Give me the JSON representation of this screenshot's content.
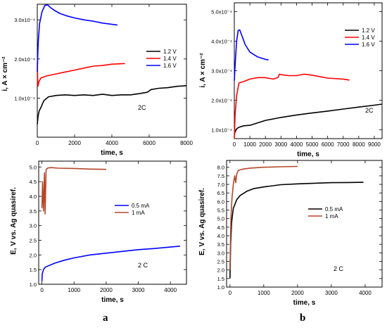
{
  "figure": {
    "captions": [
      "a",
      "b"
    ]
  },
  "chart_data": [
    {
      "id": "top-left",
      "type": "line",
      "title": "",
      "xlabel": "time, s",
      "ylabel": "i, A × cm⁻²",
      "xlim": [
        0,
        8000
      ],
      "ylim": [
        0.0,
        0.00034
      ],
      "xticks": [
        0,
        2000,
        4000,
        6000,
        8000
      ],
      "xtick_labels": [
        "0",
        "2000",
        "4000",
        "6000",
        "8000"
      ],
      "yticks": [
        0.0001,
        0.0002,
        0.0003
      ],
      "ytick_labels": [
        "1.0x10⁻⁴",
        "2.0x10⁻⁴",
        "3.0x10⁻⁴"
      ],
      "annotation": "2C",
      "legend_position": "right",
      "series": [
        {
          "name": "1.2 V",
          "color": "#000000",
          "x": [
            0,
            40,
            100,
            200,
            350,
            600,
            1000,
            1500,
            2000,
            2500,
            3000,
            3500,
            4000,
            4500,
            5000,
            5500,
            5900,
            6100,
            6500,
            7000,
            7500,
            8000
          ],
          "y": [
            3.33e-05,
            5.33e-05,
            6.67e-05,
            7.67e-05,
            9.33e-05,
            0.0001033,
            0.0001067,
            0.0001083,
            0.0001067,
            0.0001083,
            0.0001067,
            0.00011,
            0.0001067,
            0.0001083,
            0.0001083,
            0.0001117,
            0.000115,
            0.0001217,
            0.000125,
            0.0001267,
            0.00013,
            0.0001317
          ]
        },
        {
          "name": "1.4 V",
          "color": "#ff0000",
          "x": [
            0,
            30,
            100,
            200,
            500,
            1000,
            1500,
            2000,
            2500,
            3000,
            3500,
            4000,
            4700
          ],
          "y": [
            0.0001917,
            0.00013,
            0.0001433,
            0.0001517,
            0.0001567,
            0.0001617,
            0.0001667,
            0.0001717,
            0.0001767,
            0.0001817,
            0.0001833,
            0.0001867,
            0.0001883
          ]
        },
        {
          "name": "1.6 V",
          "color": "#0000ff",
          "x": [
            0,
            30,
            60,
            120,
            250,
            400,
            550,
            700,
            900,
            1200,
            1600,
            2000,
            2500,
            3000,
            3500,
            4300
          ],
          "y": [
            0.0001667,
            0.0002167,
            0.00025,
            0.00029,
            0.00032,
            0.0003367,
            0.0003383,
            0.0003317,
            0.000325,
            0.0003167,
            0.00031,
            0.000305,
            0.0003,
            0.0002967,
            0.0002917,
            0.0002867
          ]
        }
      ]
    },
    {
      "id": "top-right",
      "type": "line",
      "title": "",
      "xlabel": "time, s",
      "ylabel": "i, A × cm⁻²",
      "xlim": [
        0,
        9500
      ],
      "ylim": [
        7e-05,
        0.00053
      ],
      "xticks": [
        0,
        1000,
        2000,
        3000,
        4000,
        5000,
        6000,
        7000,
        8000,
        9000
      ],
      "xtick_labels": [
        "0",
        "1000",
        "2000",
        "3000",
        "4000",
        "5000",
        "6000",
        "7000",
        "8000",
        "9000"
      ],
      "yticks": [
        0.0001,
        0.0002,
        0.0003,
        0.0004,
        0.0005
      ],
      "ytick_labels": [
        "1.0x10⁻⁴",
        "2.0x10⁻⁴",
        "3.0x10⁻⁴",
        "4.0x10⁻⁴",
        "5.0x10⁻⁴"
      ],
      "annotation": "2C",
      "legend_position": "right",
      "series": [
        {
          "name": "1.2 V",
          "color": "#000000",
          "x": [
            0,
            50,
            150,
            300,
            600,
            1000,
            1500,
            2000,
            3000,
            4000,
            5000,
            6000,
            7000,
            8000,
            9000,
            9500
          ],
          "y": [
            8.33e-05,
            9.33e-05,
            0.0001033,
            0.0001083,
            0.0001133,
            0.000115,
            0.0001233,
            0.0001317,
            0.0001417,
            0.00015,
            0.0001567,
            0.0001633,
            0.00017,
            0.0001767,
            0.0001833,
            0.0001867
          ]
        },
        {
          "name": "1.4 V",
          "color": "#ff0000",
          "x": [
            0,
            50,
            150,
            300,
            600,
            1000,
            1500,
            2000,
            2500,
            2800,
            2900,
            3000,
            3500,
            4000,
            4500,
            5000,
            6000,
            7000,
            7400
          ],
          "y": [
            7e-05,
            0.00015,
            0.0002167,
            0.0002583,
            0.0002633,
            0.0002717,
            0.0002767,
            0.0002767,
            0.0002717,
            0.0002767,
            0.0002883,
            0.0002867,
            0.0002833,
            0.0002833,
            0.0002883,
            0.000285,
            0.000275,
            0.0002717,
            0.0002683
          ]
        },
        {
          "name": "1.6 V",
          "color": "#0000ff",
          "x": [
            0,
            50,
            100,
            150,
            250,
            350,
            500,
            700,
            1000,
            1500,
            2000,
            2200
          ],
          "y": [
            0.0002667,
            0.0003167,
            0.00036,
            0.0004,
            0.0004367,
            0.0004383,
            0.0004167,
            0.0003883,
            0.0003633,
            0.0003467,
            0.0003383,
            0.0003367
          ]
        }
      ]
    },
    {
      "id": "bottom-left",
      "type": "line",
      "title": "",
      "xlabel": "time, s",
      "ylabel": "E, V vs. Ag quasiref.",
      "xlim": [
        -100,
        4500
      ],
      "ylim": [
        1.0,
        5.2
      ],
      "xticks": [
        0,
        1000,
        2000,
        3000,
        4000
      ],
      "xtick_labels": [
        "0",
        "1000",
        "2000",
        "3000",
        "4000"
      ],
      "yticks": [
        1.0,
        1.5,
        2.0,
        2.5,
        3.0,
        3.5,
        4.0,
        4.5,
        5.0
      ],
      "ytick_labels": [
        "1.0",
        "1.5",
        "2.0",
        "2.5",
        "3.0",
        "3.5",
        "4.0",
        "4.5",
        "5.0"
      ],
      "annotation": "2 C",
      "legend_position": "right",
      "series": [
        {
          "name": "0.5 mA",
          "color": "#0000ff",
          "x": [
            0,
            10,
            50,
            100,
            200,
            400,
            700,
            1000,
            1500,
            2000,
            2500,
            3000,
            3500,
            4000,
            4300
          ],
          "y": [
            1.1,
            1.35,
            1.5,
            1.58,
            1.63,
            1.72,
            1.82,
            1.9,
            2.0,
            2.06,
            2.12,
            2.18,
            2.22,
            2.27,
            2.3
          ]
        },
        {
          "name": "1 mA",
          "color": "#b5462b",
          "x": [
            0,
            20,
            50,
            80,
            100,
            130,
            160,
            200,
            300,
            500,
            1000,
            1500,
            2000
          ],
          "y": [
            3.6,
            4.5,
            3.5,
            4.8,
            3.4,
            4.9,
            4.95,
            4.97,
            4.98,
            4.96,
            4.95,
            4.93,
            4.92
          ]
        }
      ]
    },
    {
      "id": "bottom-right",
      "type": "line",
      "title": "",
      "xlabel": "time, s",
      "ylabel": "E, V vs. Ag quasiref.",
      "xlim": [
        -100,
        4500
      ],
      "ylim": [
        1.0,
        8.4
      ],
      "xticks": [
        0,
        1000,
        2000,
        3000,
        4000
      ],
      "xtick_labels": [
        "0",
        "1000",
        "2000",
        "3000",
        "4000"
      ],
      "yticks": [
        1.0,
        1.5,
        2.0,
        2.5,
        3.0,
        3.5,
        4.0,
        4.5,
        5.0,
        5.5,
        6.0,
        6.5,
        7.0,
        7.5,
        8.0
      ],
      "ytick_labels": [
        "1.0",
        "1.5",
        "2.0",
        "2.5",
        "3.0",
        "3.5",
        "4.0",
        "4.5",
        "5.0",
        "5.5",
        "6.0",
        "6.5",
        "7.0",
        "7.5",
        "8.0"
      ],
      "annotation": "2 C",
      "legend_position": "right",
      "series": [
        {
          "name": "0.5 mA",
          "color": "#000000",
          "x": [
            0,
            20,
            50,
            100,
            200,
            300,
            500,
            700,
            1000,
            1500,
            2000,
            2500,
            3000,
            3500,
            3950
          ],
          "y": [
            1.5,
            3.5,
            4.8,
            5.6,
            6.1,
            6.35,
            6.6,
            6.75,
            6.85,
            6.98,
            7.03,
            7.07,
            7.1,
            7.11,
            7.12
          ]
        },
        {
          "name": "1 mA",
          "color": "#b5462b",
          "x": [
            0,
            30,
            60,
            100,
            140,
            170,
            200,
            240,
            300,
            400,
            600,
            1000,
            1500,
            2000
          ],
          "y": [
            2.0,
            5.0,
            6.2,
            7.0,
            7.5,
            7.1,
            7.6,
            7.8,
            7.85,
            7.9,
            7.95,
            8.0,
            8.03,
            8.05
          ]
        }
      ]
    }
  ]
}
